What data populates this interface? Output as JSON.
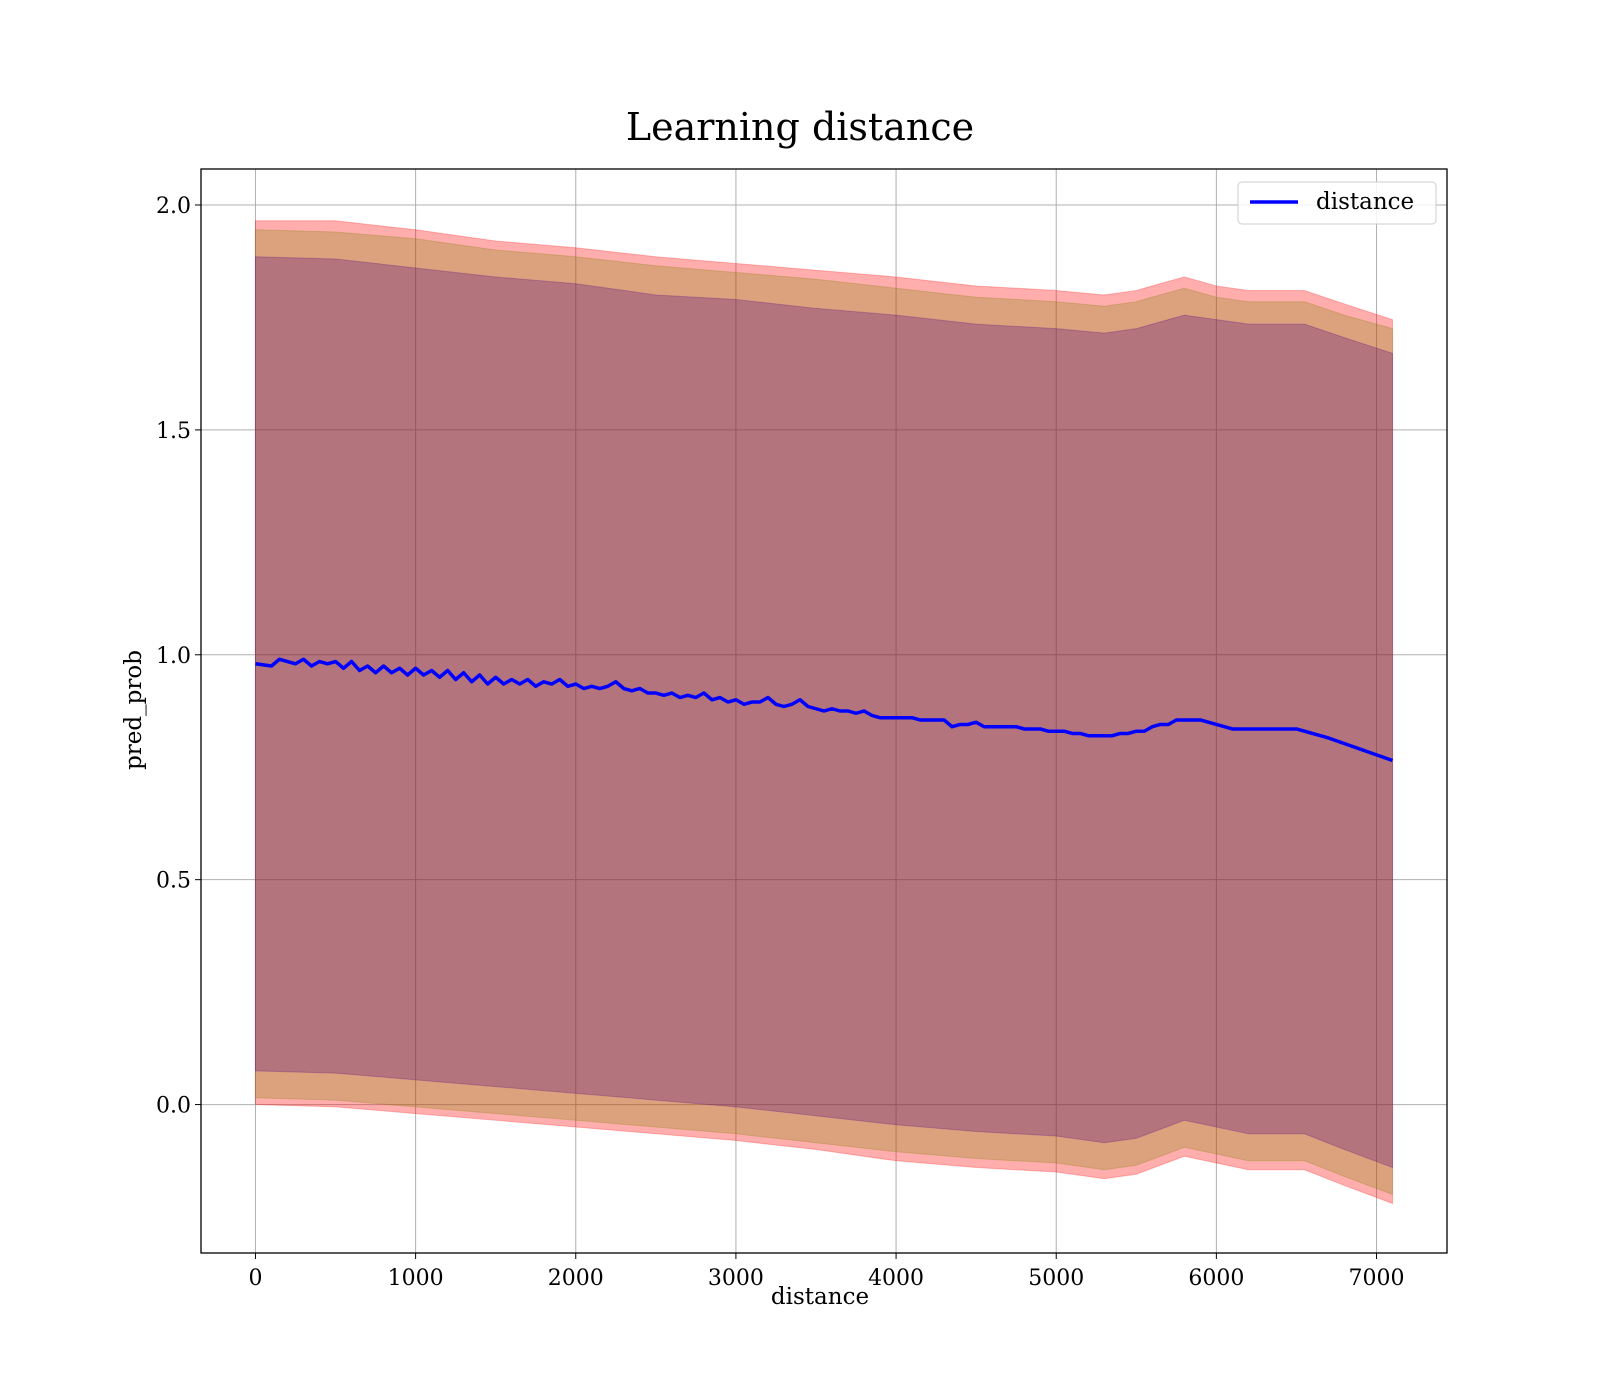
{
  "chart_data": {
    "type": "line",
    "title": "Learning distance",
    "xlabel": "distance",
    "ylabel": "pred_prob",
    "xlim": [
      -340,
      7440
    ],
    "ylim": [
      -0.33,
      2.08
    ],
    "xticks": [
      0,
      1000,
      2000,
      3000,
      4000,
      5000,
      6000,
      7000
    ],
    "xtick_labels": [
      "0",
      "1000",
      "2000",
      "3000",
      "4000",
      "5000",
      "6000",
      "7000"
    ],
    "yticks": [
      0.0,
      0.5,
      1.0,
      1.5,
      2.0
    ],
    "ytick_labels": [
      "0.0",
      "0.5",
      "1.0",
      "1.5",
      "2.0"
    ],
    "grid": true,
    "legend_position": "top-right",
    "series": [
      {
        "name": "distance",
        "color": "#0000ff",
        "x": [
          0,
          100,
          150,
          200,
          250,
          300,
          350,
          400,
          450,
          500,
          550,
          600,
          650,
          700,
          750,
          800,
          850,
          900,
          950,
          1000,
          1050,
          1100,
          1150,
          1200,
          1250,
          1300,
          1350,
          1400,
          1450,
          1500,
          1550,
          1600,
          1650,
          1700,
          1750,
          1800,
          1850,
          1900,
          1950,
          2000,
          2050,
          2100,
          2150,
          2200,
          2250,
          2300,
          2350,
          2400,
          2450,
          2500,
          2550,
          2600,
          2650,
          2700,
          2750,
          2800,
          2850,
          2900,
          2950,
          3000,
          3050,
          3100,
          3150,
          3200,
          3250,
          3300,
          3350,
          3400,
          3450,
          3500,
          3550,
          3600,
          3650,
          3700,
          3750,
          3800,
          3850,
          3900,
          3950,
          4000,
          4050,
          4100,
          4150,
          4200,
          4250,
          4300,
          4350,
          4400,
          4450,
          4500,
          4550,
          4600,
          4650,
          4700,
          4750,
          4800,
          4850,
          4900,
          4950,
          5000,
          5050,
          5100,
          5150,
          5200,
          5250,
          5300,
          5350,
          5400,
          5450,
          5500,
          5550,
          5600,
          5650,
          5700,
          5750,
          5800,
          5850,
          5900,
          5950,
          6000,
          6050,
          6100,
          6150,
          6200,
          6300,
          6400,
          6500,
          6550,
          6700,
          6900,
          7100
        ],
        "values": [
          0.98,
          0.975,
          0.99,
          0.985,
          0.98,
          0.99,
          0.975,
          0.985,
          0.98,
          0.985,
          0.97,
          0.985,
          0.965,
          0.975,
          0.96,
          0.975,
          0.96,
          0.97,
          0.955,
          0.97,
          0.955,
          0.965,
          0.95,
          0.965,
          0.945,
          0.96,
          0.94,
          0.955,
          0.935,
          0.95,
          0.935,
          0.945,
          0.935,
          0.945,
          0.93,
          0.94,
          0.935,
          0.945,
          0.93,
          0.935,
          0.925,
          0.93,
          0.925,
          0.93,
          0.94,
          0.925,
          0.92,
          0.925,
          0.915,
          0.915,
          0.91,
          0.915,
          0.905,
          0.91,
          0.905,
          0.915,
          0.9,
          0.905,
          0.895,
          0.9,
          0.89,
          0.895,
          0.895,
          0.905,
          0.89,
          0.885,
          0.89,
          0.9,
          0.885,
          0.88,
          0.875,
          0.88,
          0.875,
          0.875,
          0.87,
          0.875,
          0.865,
          0.86,
          0.86,
          0.86,
          0.86,
          0.86,
          0.855,
          0.855,
          0.855,
          0.855,
          0.84,
          0.845,
          0.845,
          0.85,
          0.84,
          0.84,
          0.84,
          0.84,
          0.84,
          0.835,
          0.835,
          0.835,
          0.83,
          0.83,
          0.83,
          0.825,
          0.825,
          0.82,
          0.82,
          0.82,
          0.82,
          0.825,
          0.825,
          0.83,
          0.83,
          0.84,
          0.845,
          0.845,
          0.855,
          0.855,
          0.855,
          0.855,
          0.85,
          0.845,
          0.84,
          0.835,
          0.835,
          0.835,
          0.835,
          0.835,
          0.835,
          0.83,
          0.815,
          0.79,
          0.765
        ]
      }
    ],
    "bands": [
      {
        "color": "#ff0000",
        "opacity": 0.32,
        "x": [
          0,
          500,
          1000,
          1500,
          2000,
          2500,
          3000,
          3500,
          4000,
          4500,
          5000,
          5300,
          5500,
          5800,
          6000,
          6200,
          6550,
          6800,
          7100
        ],
        "upper": [
          1.965,
          1.965,
          1.945,
          1.92,
          1.905,
          1.885,
          1.87,
          1.855,
          1.84,
          1.82,
          1.81,
          1.8,
          1.81,
          1.84,
          1.82,
          1.81,
          1.81,
          1.78,
          1.745
        ],
        "lower": [
          0.0,
          -0.005,
          -0.02,
          -0.035,
          -0.05,
          -0.065,
          -0.08,
          -0.1,
          -0.125,
          -0.14,
          -0.15,
          -0.165,
          -0.155,
          -0.115,
          -0.13,
          -0.145,
          -0.145,
          -0.18,
          -0.22
        ]
      },
      {
        "color": "#808000",
        "opacity": 0.28,
        "x": [
          0,
          500,
          1000,
          1500,
          2000,
          2500,
          3000,
          3500,
          4000,
          4500,
          5000,
          5300,
          5500,
          5800,
          6000,
          6200,
          6550,
          6800,
          7100
        ],
        "upper": [
          1.945,
          1.94,
          1.925,
          1.9,
          1.885,
          1.865,
          1.85,
          1.835,
          1.815,
          1.795,
          1.785,
          1.775,
          1.785,
          1.815,
          1.795,
          1.785,
          1.785,
          1.755,
          1.725
        ],
        "lower": [
          0.015,
          0.01,
          -0.005,
          -0.02,
          -0.035,
          -0.05,
          -0.065,
          -0.085,
          -0.105,
          -0.12,
          -0.13,
          -0.145,
          -0.135,
          -0.095,
          -0.11,
          -0.125,
          -0.125,
          -0.16,
          -0.2
        ]
      },
      {
        "color": "#4b0082",
        "opacity": 0.28,
        "x": [
          0,
          500,
          1000,
          1500,
          2000,
          2500,
          3000,
          3500,
          4000,
          4500,
          5000,
          5300,
          5500,
          5800,
          6000,
          6200,
          6550,
          6800,
          7100
        ],
        "upper": [
          1.885,
          1.88,
          1.86,
          1.84,
          1.825,
          1.8,
          1.79,
          1.77,
          1.755,
          1.735,
          1.725,
          1.715,
          1.725,
          1.755,
          1.745,
          1.735,
          1.735,
          1.705,
          1.67
        ],
        "lower": [
          0.075,
          0.07,
          0.055,
          0.04,
          0.025,
          0.01,
          -0.005,
          -0.025,
          -0.045,
          -0.06,
          -0.07,
          -0.085,
          -0.075,
          -0.035,
          -0.05,
          -0.065,
          -0.065,
          -0.1,
          -0.14
        ]
      }
    ]
  }
}
